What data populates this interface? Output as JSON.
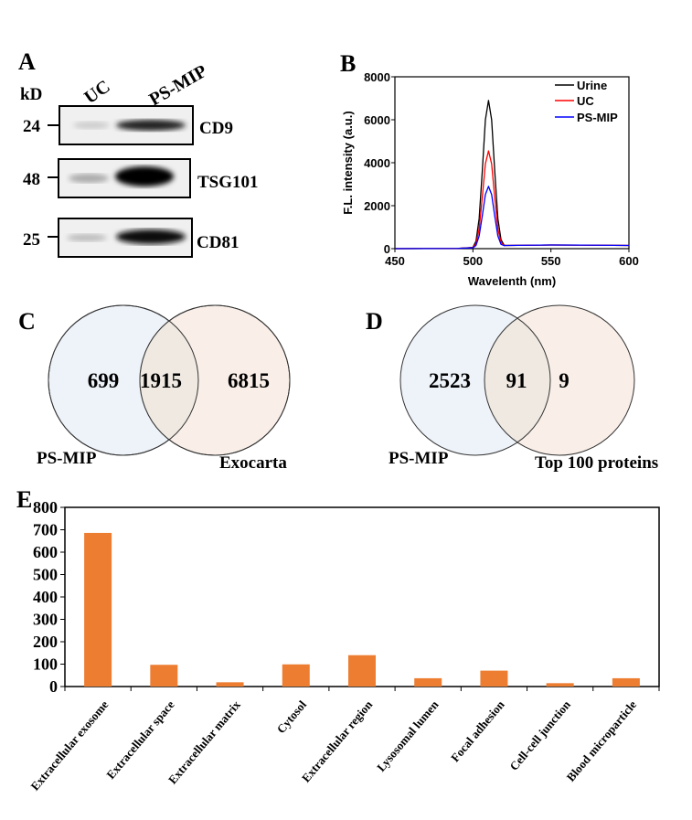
{
  "panels": {
    "a": "A",
    "b": "B",
    "c": "C",
    "d": "D",
    "e": "E"
  },
  "western_blot": {
    "unit_label": "kD",
    "lanes": [
      "UC",
      "PS-MIP"
    ],
    "bands": [
      {
        "marker": "24",
        "protein": "CD9"
      },
      {
        "marker": "48",
        "protein": "TSG101"
      },
      {
        "marker": "25",
        "protein": "CD81"
      }
    ]
  },
  "venn_c": {
    "left_label": "PS-MIP",
    "right_label": "Exocarta",
    "left_only": "699",
    "overlap": "1915",
    "right_only": "6815"
  },
  "venn_d": {
    "left_label": "PS-MIP",
    "right_label": "Top 100 proteins",
    "left_only": "2523",
    "overlap": "91",
    "right_only": "9"
  },
  "colors": {
    "left_circle": "#eef3fa",
    "right_circle": "#f9efe8",
    "overlap": "#efe9e2",
    "bar": "#ed7d31",
    "urine": "#000000",
    "uc": "#ff0000",
    "ps_mip": "#0000ff"
  },
  "chart_data": [
    {
      "type": "line",
      "xlabel": "Wavelenth (nm)",
      "ylabel": "F.L. intensity (a.u.)",
      "xlim": [
        450,
        600
      ],
      "ylim": [
        0,
        8000
      ],
      "xticks": [
        "450",
        "500",
        "550",
        "600"
      ],
      "yticks": [
        "0",
        "2000",
        "4000",
        "6000",
        "8000"
      ],
      "legend": "top-right",
      "x": [
        450,
        490,
        500,
        502,
        504,
        506,
        508,
        510,
        512,
        514,
        516,
        518,
        520,
        522,
        550,
        580,
        600
      ],
      "series": [
        {
          "name": "Urine",
          "color": "#000000",
          "values": [
            0,
            10,
            60,
            350,
            1400,
            3600,
            6000,
            6900,
            6000,
            3600,
            1400,
            420,
            160,
            150,
            170,
            160,
            150
          ]
        },
        {
          "name": "UC",
          "color": "#ff0000",
          "values": [
            0,
            10,
            50,
            230,
            920,
            2380,
            3950,
            4550,
            3950,
            2380,
            920,
            290,
            150,
            150,
            170,
            160,
            150
          ]
        },
        {
          "name": "PS-MIP",
          "color": "#0000ff",
          "values": [
            0,
            10,
            40,
            150,
            590,
            1520,
            2520,
            2900,
            2520,
            1520,
            590,
            200,
            140,
            150,
            170,
            160,
            150
          ]
        }
      ]
    },
    {
      "type": "bar",
      "categories": [
        "Extracellular exosome",
        "Extracellular space",
        "Extracellular matrix",
        "Cytosol",
        "Extracellular region",
        "Lysosomal lumen",
        "Focal adhesion",
        "Cell-cell junction",
        "Blood microparticle"
      ],
      "values": [
        686,
        97,
        19,
        99,
        140,
        37,
        71,
        15,
        37
      ],
      "ylim": [
        0,
        800
      ],
      "yticks": [
        "0",
        "100",
        "200",
        "300",
        "400",
        "500",
        "600",
        "700",
        "800"
      ],
      "color": "#ed7d31"
    }
  ]
}
